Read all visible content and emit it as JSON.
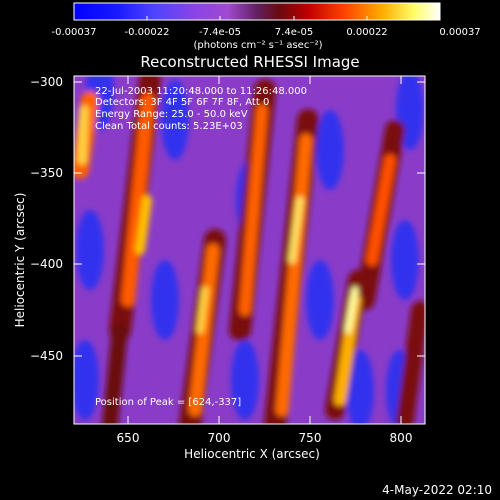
{
  "colorbar": {
    "ticks": [
      "-0.00037",
      "-0.00022",
      "-7.4e-05",
      "7.4e-05",
      "0.00022",
      "0.00037"
    ],
    "unit_label": "(photons cm⁻² s⁻¹ asec⁻²)"
  },
  "title": "Reconstructed RHESSI Image",
  "info_lines": [
    "22-Jul-2003 11:20:48.000 to 11:26:48.000",
    "Detectors: 3F 4F 5F 6F 7F 8F, Att 0",
    "Energy Range: 25.0 - 50.0 keV",
    "Clean    Total counts: 5.23E+03"
  ],
  "peak_label": "Position of Peak = [624,-337]",
  "xaxis": {
    "label": "Heliocentric X (arcsec)",
    "ticks": [
      "650",
      "700",
      "750",
      "800"
    ]
  },
  "yaxis": {
    "label": "Heliocentric Y (arcsec)",
    "ticks": [
      "−300",
      "−350",
      "−400",
      "−450"
    ]
  },
  "timestamp": "4-May-2022 02:10"
}
